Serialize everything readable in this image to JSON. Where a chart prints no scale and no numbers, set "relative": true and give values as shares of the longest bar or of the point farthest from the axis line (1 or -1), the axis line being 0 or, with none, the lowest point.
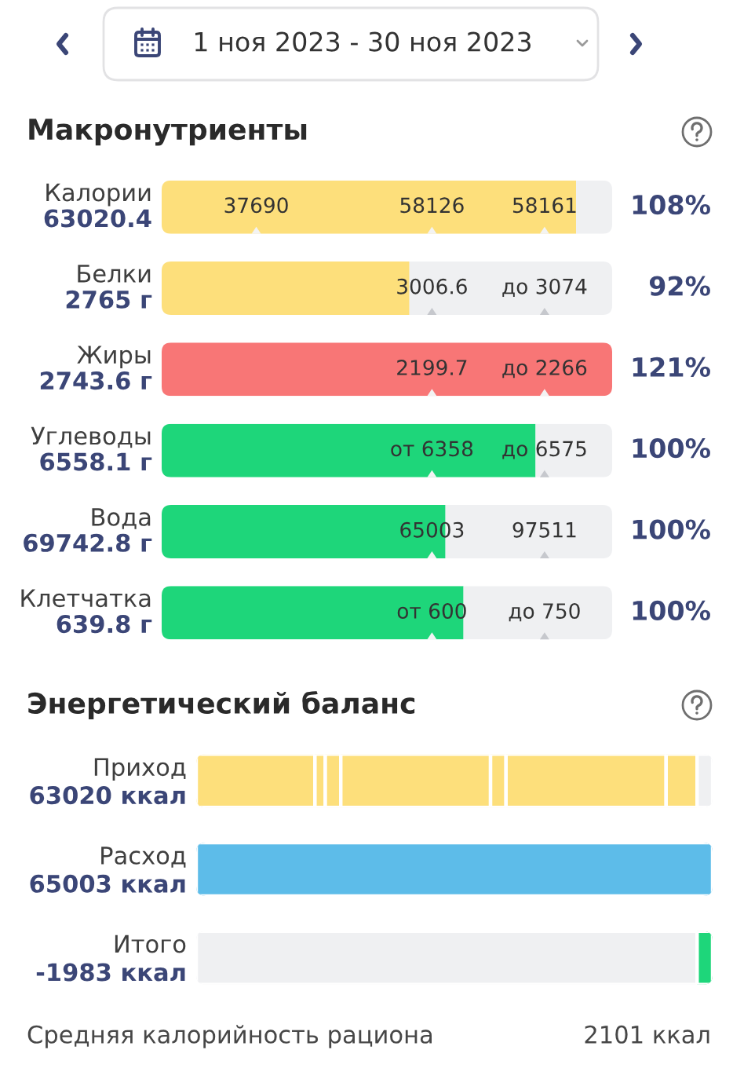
{
  "chart_data": [
    {
      "type": "bar",
      "title": "Макронутриенты",
      "orientation": "horizontal",
      "stacked": true,
      "relative": true,
      "categories": [
        "Калории\n63020.4",
        "Белки\n2765 г",
        "Жиры\n2743.6 г",
        "Углеводы\n6558.1 г",
        "Вода\n69742.8 г",
        "Клетчатка\n639.8 г"
      ],
      "series": [
        {
          "colors": [
            "#fddf7b",
            "#fddf7b",
            "#f87676",
            "#1ed67a",
            "#1ed67a",
            "#1ed67a"
          ],
          "values": [
            0.92,
            0.55,
            1,
            0.83,
            0.63,
            0.67
          ]
        },
        {
          "color": "#eff0f2",
          "values": [
            0.08,
            0.45,
            null,
            0.17,
            0.37,
            0.33
          ]
        }
      ],
      "value_labels": [
        "108%",
        "92%",
        "121%",
        "100%",
        "100%",
        "100%"
      ],
      "annotations": [
        "1 ноя 2023 - 30 ноя 2023",
        {
          "text": "37690",
          "x": 0.21,
          "y": "Калории\n63020.4"
        },
        {
          "text": "58126",
          "x": 0.6,
          "y": "Калории\n63020.4"
        },
        {
          "text": "58161",
          "x": 0.85,
          "y": "Калории\n63020.4"
        },
        {
          "text": "3006.6",
          "x": 0.6,
          "y": "Белки\n2765 г"
        },
        {
          "text": "до 3074",
          "x": 0.85,
          "y": "Белки\n2765 г"
        },
        {
          "text": "2199.7",
          "x": 0.6,
          "y": "Жиры\n2743.6 г"
        },
        {
          "text": "до 2266",
          "x": 0.85,
          "y": "Жиры\n2743.6 г"
        },
        {
          "text": "от 6358",
          "x": 0.6,
          "y": "Углеводы\n6558.1 г"
        },
        {
          "text": "до 6575",
          "x": 0.85,
          "y": "Углеводы\n6558.1 г"
        },
        {
          "text": "65003",
          "x": 0.6,
          "y": "Вода\n69742.8 г"
        },
        {
          "text": "97511",
          "x": 0.85,
          "y": "Вода\n69742.8 г"
        },
        {
          "text": "от 600",
          "x": 0.6,
          "y": "Клетчатка\n639.8 г"
        },
        {
          "text": "до 750",
          "x": 0.85,
          "y": "Клетчатка\n639.8 г"
        }
      ]
    },
    {
      "type": "bar",
      "title": "Энергетический баланс",
      "orientation": "horizontal",
      "stacked": true,
      "relative": true,
      "categories": [
        "Приход\n63020 ккал",
        "Расход\n65003 ккал",
        "Итого\n-1983 ккал"
      ],
      "series": [
        {
          "colors": [
            "#fddf7b",
            "#5dbce9",
            "#eff0f2"
          ],
          "values": [
            0.23,
            1,
            0.97
          ]
        },
        {
          "colors": [
            "#fddf7b",
            null,
            "#1ed67a"
          ],
          "values": [
            0.02,
            null,
            0.03
          ]
        },
        {
          "color": "#fddf7b",
          "values": [
            0.03,
            null,
            null
          ]
        },
        {
          "color": "#fddf7b",
          "values": [
            0.29,
            null,
            null
          ]
        },
        {
          "color": "#fddf7b",
          "values": [
            0.03,
            null,
            null
          ]
        },
        {
          "color": "#fddf7b",
          "values": [
            0.31,
            null,
            null
          ]
        },
        {
          "color": "#fddf7b",
          "values": [
            0.06,
            null,
            null
          ]
        },
        {
          "color": "#eff0f2",
          "values": [
            0.03,
            null,
            null
          ]
        }
      ],
      "annotations": [
        "Средняя калорийность рациона",
        "2101 ккал"
      ]
    }
  ]
}
